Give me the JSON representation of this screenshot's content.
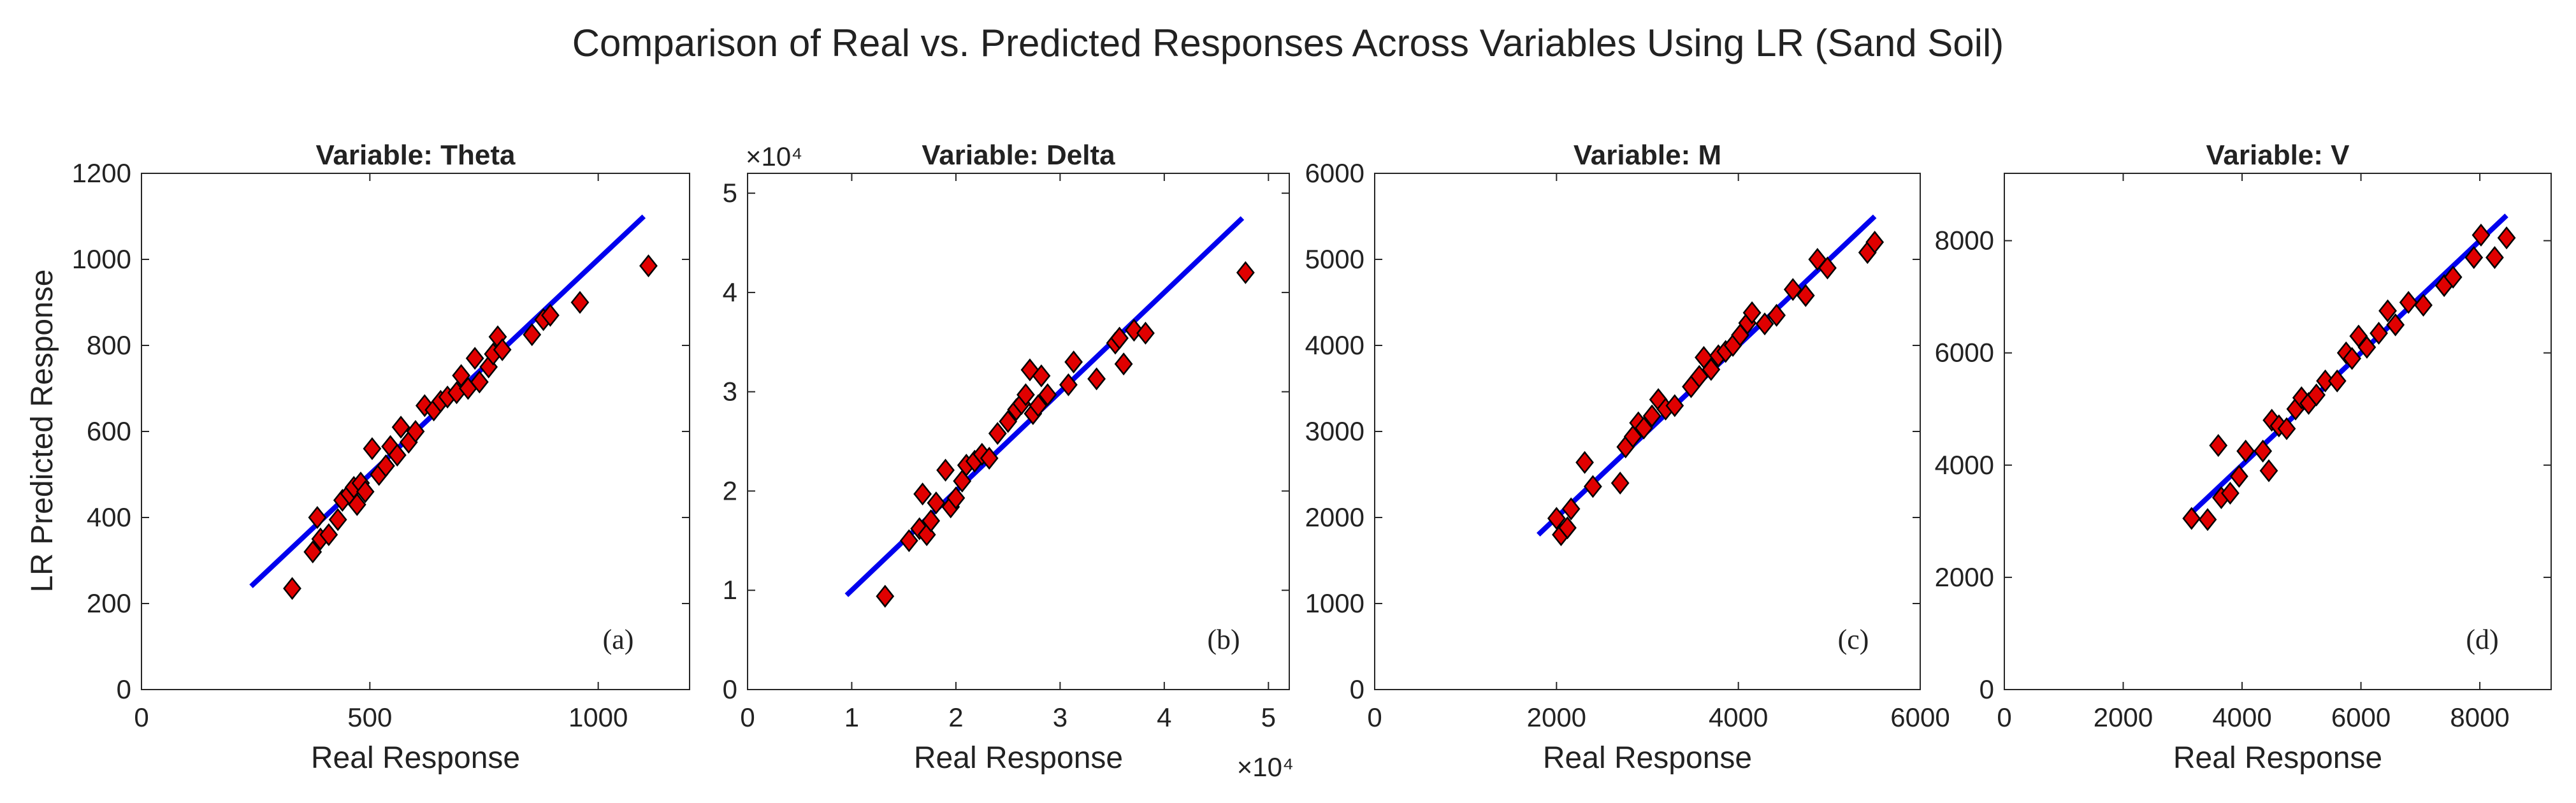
{
  "chart_data": {
    "title": "Comparison of Real vs. Predicted Responses Across Variables Using LR (Sand Soil)",
    "colors": {
      "marker": "#e00000",
      "marker_edge": "#000000",
      "fit_line": "#0000ee",
      "axes": "#262626",
      "text": "#222222"
    },
    "panels": [
      {
        "type": "scatter",
        "title": "Variable: Theta",
        "xlabel": "Real Response",
        "ylabel": "LR Predicted Response",
        "letter": "(a)",
        "xlim": [
          0,
          1200
        ],
        "ylim": [
          0,
          1200
        ],
        "xticks": [
          0,
          500,
          1000
        ],
        "xtick_labels": [
          "0",
          "500",
          "1000"
        ],
        "yticks": [
          0,
          200,
          400,
          600,
          800,
          1000,
          1200
        ],
        "ytick_labels": [
          "0",
          "200",
          "400",
          "600",
          "800",
          "1000",
          "1200"
        ],
        "x_exponent": "",
        "y_exponent": "",
        "fit_line": {
          "x": [
            240,
            1100
          ],
          "y": [
            240,
            1100
          ]
        },
        "points": [
          [
            330,
            235
          ],
          [
            375,
            320
          ],
          [
            385,
            400
          ],
          [
            392,
            350
          ],
          [
            410,
            360
          ],
          [
            430,
            395
          ],
          [
            440,
            440
          ],
          [
            455,
            455
          ],
          [
            465,
            470
          ],
          [
            472,
            430
          ],
          [
            480,
            480
          ],
          [
            490,
            460
          ],
          [
            505,
            560
          ],
          [
            520,
            500
          ],
          [
            535,
            520
          ],
          [
            545,
            565
          ],
          [
            560,
            545
          ],
          [
            568,
            610
          ],
          [
            585,
            575
          ],
          [
            600,
            600
          ],
          [
            620,
            660
          ],
          [
            640,
            650
          ],
          [
            655,
            670
          ],
          [
            670,
            680
          ],
          [
            690,
            690
          ],
          [
            700,
            730
          ],
          [
            715,
            700
          ],
          [
            730,
            770
          ],
          [
            740,
            715
          ],
          [
            760,
            750
          ],
          [
            770,
            780
          ],
          [
            780,
            820
          ],
          [
            790,
            790
          ],
          [
            855,
            825
          ],
          [
            880,
            860
          ],
          [
            895,
            870
          ],
          [
            960,
            900
          ],
          [
            1110,
            985
          ]
        ]
      },
      {
        "type": "scatter",
        "title": "Variable: Delta",
        "xlabel": "Real Response",
        "ylabel": "",
        "letter": "(b)",
        "xlim": [
          0,
          52000
        ],
        "ylim": [
          0,
          52000
        ],
        "xticks": [
          0,
          10000,
          20000,
          30000,
          40000,
          50000
        ],
        "xtick_labels": [
          "0",
          "1",
          "2",
          "3",
          "4",
          "5"
        ],
        "yticks": [
          0,
          10000,
          20000,
          30000,
          40000,
          50000
        ],
        "ytick_labels": [
          "0",
          "1",
          "2",
          "3",
          "4",
          "5"
        ],
        "x_exponent": "×10⁴",
        "y_exponent": "×10⁴",
        "fit_line": {
          "x": [
            9500,
            47500
          ],
          "y": [
            9500,
            47500
          ]
        },
        "points": [
          [
            13200,
            9400
          ],
          [
            15500,
            15000
          ],
          [
            16500,
            16200
          ],
          [
            16800,
            19700
          ],
          [
            17200,
            15600
          ],
          [
            17600,
            17000
          ],
          [
            18100,
            18800
          ],
          [
            19000,
            22100
          ],
          [
            19500,
            18400
          ],
          [
            20000,
            19300
          ],
          [
            20600,
            21000
          ],
          [
            21000,
            22600
          ],
          [
            21800,
            23000
          ],
          [
            22500,
            23700
          ],
          [
            23200,
            23300
          ],
          [
            24000,
            25800
          ],
          [
            25000,
            27000
          ],
          [
            25800,
            28200
          ],
          [
            26300,
            28800
          ],
          [
            26700,
            29700
          ],
          [
            27100,
            32200
          ],
          [
            27400,
            27800
          ],
          [
            27900,
            28600
          ],
          [
            28200,
            31600
          ],
          [
            28800,
            29700
          ],
          [
            30800,
            30700
          ],
          [
            31300,
            33000
          ],
          [
            33500,
            31300
          ],
          [
            35300,
            34900
          ],
          [
            35700,
            35400
          ],
          [
            36100,
            32800
          ],
          [
            37100,
            36200
          ],
          [
            38200,
            35900
          ],
          [
            47800,
            42000
          ]
        ]
      },
      {
        "type": "scatter",
        "title": "Variable: M",
        "xlabel": "Real Response",
        "ylabel": "",
        "letter": "(c)",
        "xlim": [
          0,
          6000
        ],
        "ylim": [
          0,
          6000
        ],
        "xticks": [
          0,
          2000,
          4000,
          6000
        ],
        "xtick_labels": [
          "0",
          "2000",
          "4000",
          "6000"
        ],
        "yticks": [
          0,
          1000,
          2000,
          3000,
          4000,
          5000,
          6000
        ],
        "ytick_labels": [
          "0",
          "1000",
          "2000",
          "3000",
          "4000",
          "5000",
          "6000"
        ],
        "x_exponent": "",
        "y_exponent": "",
        "fit_line": {
          "x": [
            1800,
            5500
          ],
          "y": [
            1800,
            5500
          ]
        },
        "points": [
          [
            2000,
            1990
          ],
          [
            2050,
            1800
          ],
          [
            2120,
            1880
          ],
          [
            2160,
            2100
          ],
          [
            2310,
            2640
          ],
          [
            2400,
            2360
          ],
          [
            2700,
            2400
          ],
          [
            2760,
            2820
          ],
          [
            2840,
            2940
          ],
          [
            2900,
            3100
          ],
          [
            2960,
            3040
          ],
          [
            3050,
            3180
          ],
          [
            3120,
            3370
          ],
          [
            3200,
            3260
          ],
          [
            3300,
            3300
          ],
          [
            3480,
            3520
          ],
          [
            3570,
            3640
          ],
          [
            3620,
            3860
          ],
          [
            3700,
            3720
          ],
          [
            3780,
            3880
          ],
          [
            3860,
            3930
          ],
          [
            3940,
            4000
          ],
          [
            4020,
            4120
          ],
          [
            4100,
            4260
          ],
          [
            4150,
            4380
          ],
          [
            4290,
            4250
          ],
          [
            4420,
            4350
          ],
          [
            4600,
            4650
          ],
          [
            4740,
            4580
          ],
          [
            4870,
            5000
          ],
          [
            4980,
            4900
          ],
          [
            5420,
            5080
          ],
          [
            5500,
            5200
          ]
        ]
      },
      {
        "type": "scatter",
        "title": "Variable: V",
        "xlabel": "Real Response",
        "ylabel": "",
        "letter": "(d)",
        "xlim": [
          0,
          9200
        ],
        "ylim": [
          0,
          9200
        ],
        "xticks": [
          0,
          2000,
          4000,
          6000,
          8000
        ],
        "xtick_labels": [
          "0",
          "2000",
          "4000",
          "6000",
          "8000"
        ],
        "yticks": [
          0,
          2000,
          4000,
          6000,
          8000
        ],
        "ytick_labels": [
          "0",
          "2000",
          "4000",
          "6000",
          "8000"
        ],
        "x_exponent": "",
        "y_exponent": "",
        "fit_line": {
          "x": [
            3100,
            8450
          ],
          "y": [
            3100,
            8450
          ]
        },
        "points": [
          [
            3150,
            3050
          ],
          [
            3420,
            3030
          ],
          [
            3600,
            4350
          ],
          [
            3650,
            3420
          ],
          [
            3800,
            3500
          ],
          [
            3950,
            3800
          ],
          [
            4060,
            4250
          ],
          [
            4350,
            4250
          ],
          [
            4450,
            3900
          ],
          [
            4500,
            4800
          ],
          [
            4620,
            4700
          ],
          [
            4750,
            4650
          ],
          [
            4900,
            5000
          ],
          [
            5000,
            5200
          ],
          [
            5120,
            5100
          ],
          [
            5250,
            5250
          ],
          [
            5400,
            5500
          ],
          [
            5600,
            5500
          ],
          [
            5750,
            6000
          ],
          [
            5850,
            5900
          ],
          [
            5960,
            6300
          ],
          [
            6100,
            6100
          ],
          [
            6300,
            6350
          ],
          [
            6450,
            6750
          ],
          [
            6580,
            6500
          ],
          [
            6800,
            6900
          ],
          [
            7050,
            6850
          ],
          [
            7400,
            7200
          ],
          [
            7550,
            7350
          ],
          [
            7900,
            7700
          ],
          [
            8020,
            8100
          ],
          [
            8250,
            7700
          ],
          [
            8450,
            8050
          ]
        ]
      }
    ]
  }
}
